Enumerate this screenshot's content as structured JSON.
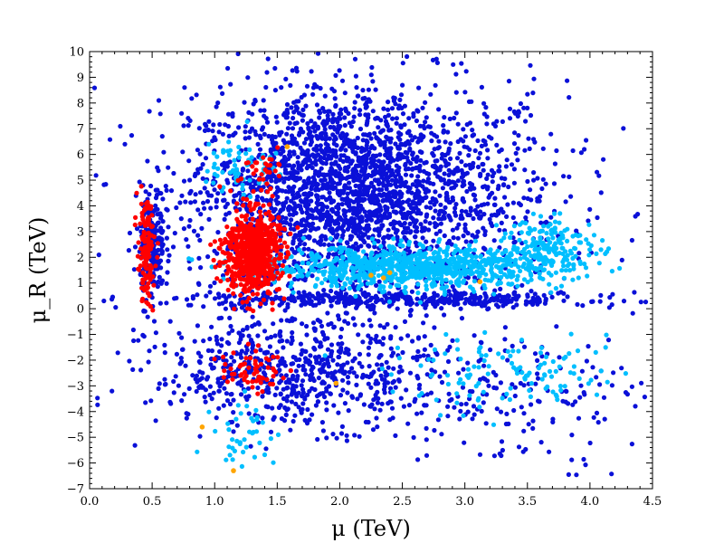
{
  "chart_data": {
    "type": "scatter",
    "title": "",
    "xlabel": "μ (TeV)",
    "ylabel": "μ_R (TeV)",
    "xlim": [
      0.0,
      4.5
    ],
    "ylim": [
      -7,
      10
    ],
    "grid": false,
    "x_ticks": [
      "0.0",
      "0.5",
      "1.0",
      "1.5",
      "2.0",
      "2.5",
      "3.0",
      "3.5",
      "4.0",
      "4.5"
    ],
    "y_ticks": [
      "−7",
      "−6",
      "−5",
      "−4",
      "−3",
      "−2",
      "−1",
      "0",
      "1",
      "2",
      "3",
      "4",
      "5",
      "6",
      "7",
      "8",
      "9",
      "10"
    ],
    "series": [
      {
        "color": "#0a10d8",
        "regions": [
          {
            "x_center": 2.3,
            "y_center": 4.3,
            "x_spread": 1.5,
            "y_spread": 4.5,
            "count": 1400
          },
          {
            "x_center": 1.9,
            "y_center": 4.8,
            "x_spread": 1.1,
            "y_spread": 3.6,
            "count": 1200
          },
          {
            "x_center": 0.5,
            "y_center": 2.5,
            "x_spread": 0.1,
            "y_spread": 2.2,
            "count": 200
          },
          {
            "x_center": 2.5,
            "y_center": 0.35,
            "x_spread": 1.9,
            "y_spread": 0.3,
            "count": 400
          },
          {
            "x_center": 1.65,
            "y_center": -2.5,
            "x_spread": 1.15,
            "y_spread": 2.1,
            "count": 650
          },
          {
            "x_center": 3.3,
            "y_center": -3.4,
            "x_spread": 1.1,
            "y_spread": 2.8,
            "count": 180
          }
        ]
      },
      {
        "color": "#00bfff",
        "regions": [
          {
            "x_center": 2.6,
            "y_center": 1.6,
            "x_spread": 1.2,
            "y_spread": 0.8,
            "count": 900
          },
          {
            "x_center": 3.7,
            "y_center": 2.5,
            "x_spread": 0.4,
            "y_spread": 1.0,
            "count": 150
          },
          {
            "x_center": 1.2,
            "y_center": 5.6,
            "x_spread": 0.3,
            "y_spread": 1.3,
            "count": 60
          },
          {
            "x_center": 3.4,
            "y_center": -2.6,
            "x_spread": 1.0,
            "y_spread": 1.3,
            "count": 120
          },
          {
            "x_center": 1.25,
            "y_center": -4.9,
            "x_spread": 0.25,
            "y_spread": 1.4,
            "count": 40
          }
        ]
      },
      {
        "color": "#ff0000",
        "regions": [
          {
            "x_center": 1.3,
            "y_center": 2.2,
            "x_spread": 0.22,
            "y_spread": 1.6,
            "count": 700
          },
          {
            "x_center": 0.45,
            "y_center": 2.2,
            "x_spread": 0.07,
            "y_spread": 2.0,
            "count": 120
          },
          {
            "x_center": 1.3,
            "y_center": -2.4,
            "x_spread": 0.25,
            "y_spread": 0.8,
            "count": 60
          },
          {
            "x_center": 1.35,
            "y_center": 5.4,
            "x_spread": 0.15,
            "y_spread": 0.8,
            "count": 30
          }
        ]
      },
      {
        "color": "#ffa500",
        "points": [
          [
            2.25,
            1.3
          ],
          [
            2.35,
            1.2
          ],
          [
            2.4,
            1.4
          ],
          [
            3.12,
            1.05
          ],
          [
            1.58,
            6.3
          ],
          [
            1.15,
            -6.3
          ],
          [
            0.9,
            -4.6
          ],
          [
            1.97,
            -2.9
          ]
        ]
      }
    ]
  }
}
